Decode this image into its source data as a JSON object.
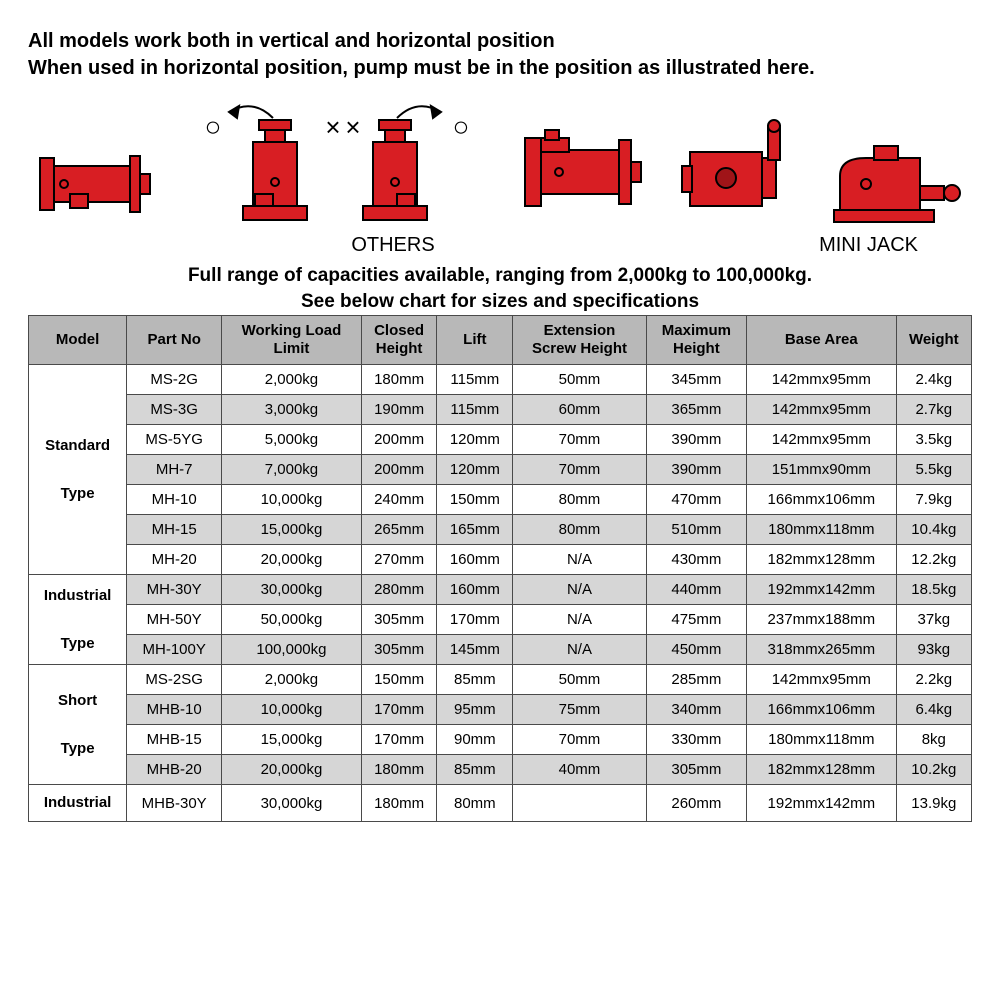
{
  "heading": {
    "line1": "All models work both in vertical and horizontal position",
    "line2": "When used in horizontal position, pump must be in the position as illustrated here."
  },
  "diagram": {
    "jack_color": "#d81e23",
    "stroke_color": "#000000",
    "symbol_o": "○",
    "symbol_x": "×",
    "labels": {
      "left": "OTHERS",
      "right": "MINI JACK"
    }
  },
  "subheading": {
    "line1": "Full range of capacities available, ranging from 2,000kg to 100,000kg.",
    "line2": "See below chart for sizes and specifications"
  },
  "table": {
    "header_bg": "#b8b8b8",
    "alt_row_bg": "#d6d6d6",
    "border_color": "#4a4a4a",
    "columns": [
      "Model",
      "Part No",
      "Working Load Limit",
      "Closed Height",
      "Lift",
      "Extension Screw Height",
      "Maximum Height",
      "Base Area",
      "Weight"
    ],
    "groups": [
      {
        "model": "Standard\nType",
        "rows": [
          {
            "alt": false,
            "cells": [
              "MS-2G",
              "2,000kg",
              "180mm",
              "115mm",
              "50mm",
              "345mm",
              "142mmx95mm",
              "2.4kg"
            ]
          },
          {
            "alt": true,
            "cells": [
              "MS-3G",
              "3,000kg",
              "190mm",
              "115mm",
              "60mm",
              "365mm",
              "142mmx95mm",
              "2.7kg"
            ]
          },
          {
            "alt": false,
            "cells": [
              "MS-5YG",
              "5,000kg",
              "200mm",
              "120mm",
              "70mm",
              "390mm",
              "142mmx95mm",
              "3.5kg"
            ]
          },
          {
            "alt": true,
            "cells": [
              "MH-7",
              "7,000kg",
              "200mm",
              "120mm",
              "70mm",
              "390mm",
              "151mmx90mm",
              "5.5kg"
            ]
          },
          {
            "alt": false,
            "cells": [
              "MH-10",
              "10,000kg",
              "240mm",
              "150mm",
              "80mm",
              "470mm",
              "166mmx106mm",
              "7.9kg"
            ]
          },
          {
            "alt": true,
            "cells": [
              "MH-15",
              "15,000kg",
              "265mm",
              "165mm",
              "80mm",
              "510mm",
              "180mmx118mm",
              "10.4kg"
            ]
          },
          {
            "alt": false,
            "cells": [
              "MH-20",
              "20,000kg",
              "270mm",
              "160mm",
              "N/A",
              "430mm",
              "182mmx128mm",
              "12.2kg"
            ]
          }
        ]
      },
      {
        "model": "Industrial\nType",
        "rows": [
          {
            "alt": true,
            "cells": [
              "MH-30Y",
              "30,000kg",
              "280mm",
              "160mm",
              "N/A",
              "440mm",
              "192mmx142mm",
              "18.5kg"
            ]
          },
          {
            "alt": false,
            "cells": [
              "MH-50Y",
              "50,000kg",
              "305mm",
              "170mm",
              "N/A",
              "475mm",
              "237mmx188mm",
              "37kg"
            ]
          },
          {
            "alt": true,
            "cells": [
              "MH-100Y",
              "100,000kg",
              "305mm",
              "145mm",
              "N/A",
              "450mm",
              "318mmx265mm",
              "93kg"
            ]
          }
        ]
      },
      {
        "model": "Short\nType",
        "rows": [
          {
            "alt": false,
            "cells": [
              "MS-2SG",
              "2,000kg",
              "150mm",
              "85mm",
              "50mm",
              "285mm",
              "142mmx95mm",
              "2.2kg"
            ]
          },
          {
            "alt": true,
            "cells": [
              "MHB-10",
              "10,000kg",
              "170mm",
              "95mm",
              "75mm",
              "340mm",
              "166mmx106mm",
              "6.4kg"
            ]
          },
          {
            "alt": false,
            "cells": [
              "MHB-15",
              "15,000kg",
              "170mm",
              "90mm",
              "70mm",
              "330mm",
              "180mmx118mm",
              "8kg"
            ]
          },
          {
            "alt": true,
            "cells": [
              "MHB-20",
              "20,000kg",
              "180mm",
              "85mm",
              "40mm",
              "305mm",
              "182mmx128mm",
              "10.2kg"
            ]
          }
        ]
      },
      {
        "model": "Industrial",
        "rows": [
          {
            "alt": false,
            "cells": [
              "MHB-30Y",
              "30,000kg",
              "180mm",
              "80mm",
              "",
              "260mm",
              "192mmx142mm",
              "13.9kg"
            ]
          }
        ]
      }
    ]
  }
}
